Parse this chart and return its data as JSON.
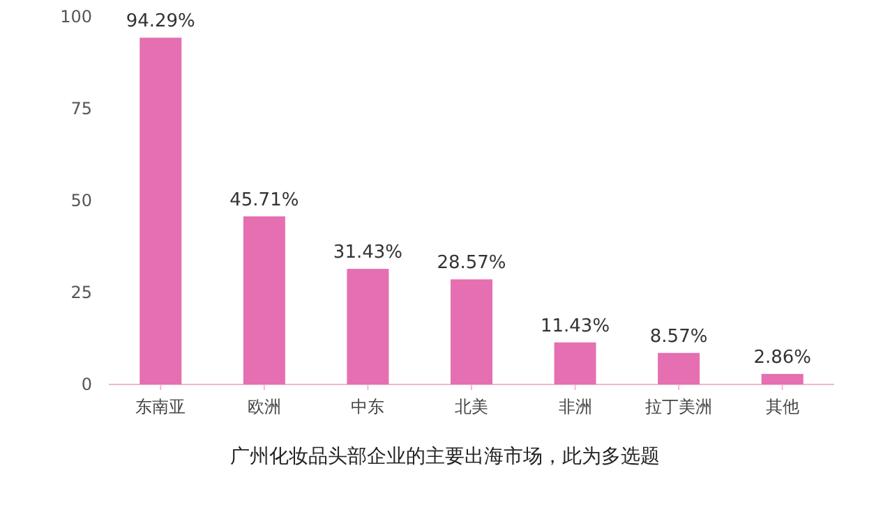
{
  "chart_data": {
    "type": "bar",
    "categories": [
      "东南亚",
      "欧洲",
      "中东",
      "北美",
      "非洲",
      "拉丁美洲",
      "其他"
    ],
    "values": [
      94.29,
      45.71,
      31.43,
      28.57,
      11.43,
      8.57,
      2.86
    ],
    "value_labels": [
      "94.29%",
      "45.71%",
      "31.43%",
      "28.57%",
      "11.43%",
      "8.57%",
      "2.86%"
    ],
    "color": "#e56fb0",
    "ylim": [
      0,
      100
    ],
    "yticks": [
      0,
      25,
      50,
      75,
      100
    ],
    "annotations": [
      "广州化妆品头部企业的主要出海市场，此为多选题"
    ]
  }
}
